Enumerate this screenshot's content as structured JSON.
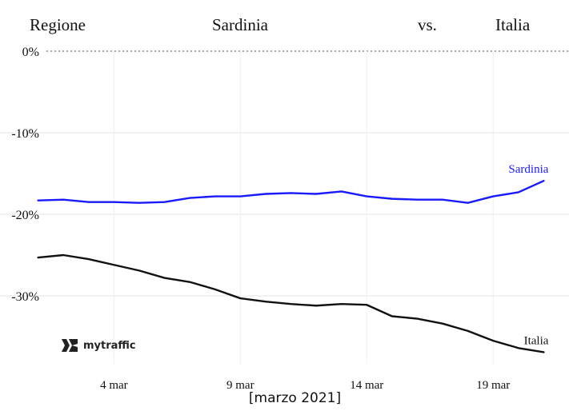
{
  "header": {
    "region_label": "Regione",
    "region_name": "Sardinia",
    "vs_label": "vs.",
    "compare_name": "Italia"
  },
  "brand": {
    "name": "mytraffic",
    "icon": "mytraffic-logo-icon"
  },
  "colors": {
    "sardinia": "#1a1aff",
    "italia": "#111111",
    "grid": "#e6e6e6",
    "zero_line": "#555555"
  },
  "chart_data": {
    "type": "line",
    "title": "",
    "xlabel": "[marzo 2021]",
    "ylabel": "",
    "x": [
      1,
      2,
      3,
      4,
      5,
      6,
      7,
      8,
      9,
      10,
      11,
      12,
      13,
      14,
      15,
      16,
      17,
      18,
      19,
      20,
      21
    ],
    "x_ticks": [
      4,
      9,
      14,
      19
    ],
    "x_tick_labels": [
      "4 mar",
      "9 mar",
      "14 mar",
      "19 mar"
    ],
    "xlim": [
      0,
      22
    ],
    "ylim": [
      -38,
      0
    ],
    "y_ticks": [
      0,
      -10,
      -20,
      -30
    ],
    "y_tick_labels": [
      "0%",
      "-10%",
      "-20%",
      "-30%"
    ],
    "grid": true,
    "legend": "line-end labels",
    "series": [
      {
        "name": "Sardinia",
        "color": "#1a1aff",
        "values": [
          -18.3,
          -18.2,
          -18.5,
          -18.5,
          -18.6,
          -18.5,
          -18.0,
          -17.8,
          -17.8,
          -17.5,
          -17.4,
          -17.5,
          -17.2,
          -17.8,
          -18.1,
          -18.2,
          -18.2,
          -18.6,
          -17.8,
          -17.3,
          -15.9
        ]
      },
      {
        "name": "Italia",
        "color": "#111111",
        "values": [
          -25.3,
          -25.0,
          -25.5,
          -26.2,
          -26.9,
          -27.8,
          -28.3,
          -29.2,
          -30.3,
          -30.7,
          -31.0,
          -31.2,
          -31.0,
          -31.1,
          -32.5,
          -32.8,
          -33.4,
          -34.3,
          -35.5,
          -36.4,
          -36.9
        ]
      }
    ]
  }
}
